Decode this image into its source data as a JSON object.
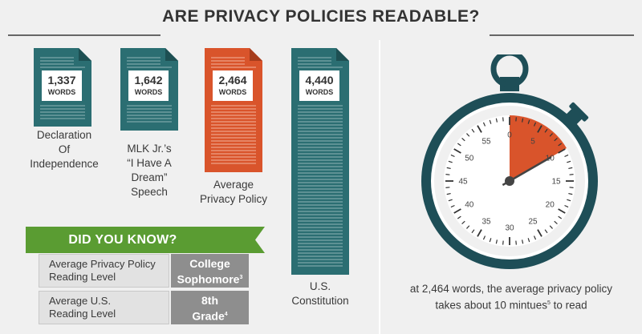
{
  "title": "ARE PRIVACY POLICIES READABLE?",
  "colors": {
    "teal": "#2b6e72",
    "orange": "#d9542b",
    "green": "#5a9c32",
    "gray": "#8e8e8e"
  },
  "documents": [
    {
      "count": "1,337",
      "unit": "WORDS",
      "caption_lines": [
        "Declaration",
        "Of",
        "Independence"
      ],
      "color": "teal"
    },
    {
      "count": "1,642",
      "unit": "WORDS",
      "caption_lines": [
        "MLK Jr.’s",
        "“I Have A",
        "Dream”",
        "Speech"
      ],
      "color": "teal"
    },
    {
      "count": "2,464",
      "unit": "WORDS",
      "caption_lines": [
        "Average",
        "Privacy Policy"
      ],
      "color": "orange"
    },
    {
      "count": "4,440",
      "unit": "WORDS",
      "caption_lines": [
        "U.S.",
        "Constitution"
      ],
      "color": "teal"
    }
  ],
  "did_you_know": {
    "heading": "DID YOU KNOW?",
    "rows": [
      {
        "label_lines": [
          "Average Privacy Policy",
          "Reading Level"
        ],
        "value_lines": [
          "College",
          "Sophomore"
        ],
        "footnote": "3"
      },
      {
        "label_lines": [
          "Average U.S.",
          "Reading Level"
        ],
        "value_lines": [
          "8th",
          "Grade"
        ],
        "footnote": "4"
      }
    ]
  },
  "stopwatch": {
    "tick_labels": [
      "0",
      "5",
      "10",
      "15",
      "20",
      "25",
      "30",
      "35",
      "40",
      "45",
      "50",
      "55"
    ],
    "highlight_minutes": 10,
    "caption_line1": "at 2,464 words, the average privacy policy",
    "caption_line2_pre": "takes about 10 mintues",
    "caption_footnote": "5",
    "caption_line2_post": " to read"
  }
}
